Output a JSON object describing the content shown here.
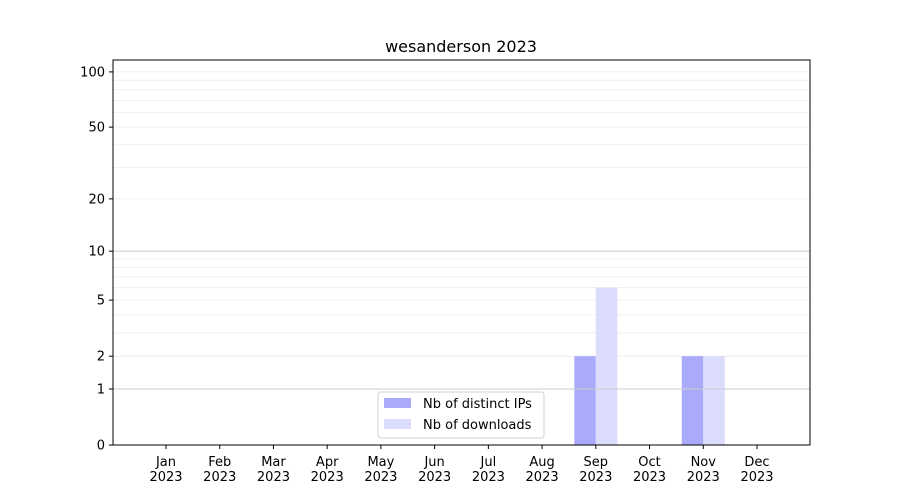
{
  "chart_data": {
    "type": "bar",
    "title": "wesanderson 2023",
    "xlabel": "",
    "ylabel": "",
    "categories": [
      "Jan\n2023",
      "Feb\n2023",
      "Mar\n2023",
      "Apr\n2023",
      "May\n2023",
      "Jun\n2023",
      "Jul\n2023",
      "Aug\n2023",
      "Sep\n2023",
      "Oct\n2023",
      "Nov\n2023",
      "Dec\n2023"
    ],
    "series": [
      {
        "name": "Nb of distinct IPs",
        "color": "#aaaafa",
        "values": [
          0,
          0,
          0,
          0,
          0,
          0,
          0,
          0,
          2,
          0,
          2,
          0
        ]
      },
      {
        "name": "Nb of downloads",
        "color": "#dcdcfc",
        "values": [
          0,
          0,
          0,
          0,
          0,
          0,
          0,
          0,
          6,
          0,
          2,
          0
        ]
      }
    ],
    "yscale": "log(1+y)",
    "yticks": [
      0,
      1,
      2,
      5,
      10,
      20,
      50,
      100
    ],
    "ylim": [
      0,
      116
    ],
    "grid": true,
    "legend": "lower-center"
  }
}
